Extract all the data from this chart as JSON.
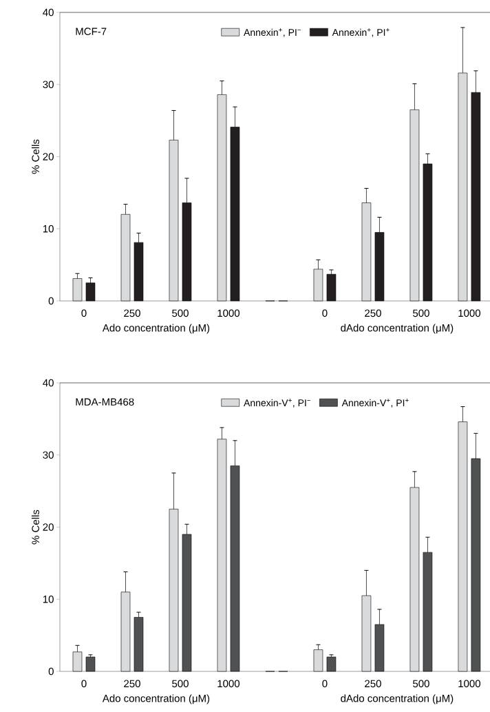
{
  "chart_data": [
    {
      "type": "bar",
      "title": "MCF-7",
      "ylabel": "% Cells",
      "xlabel": "Ado concentration (μM)",
      "annotations": [
        "dAdo concentration (μM)"
      ],
      "categories": [
        "0",
        "250",
        "500",
        "1000",
        null,
        "0",
        "250",
        "500",
        "1000"
      ],
      "series": [
        {
          "name": "Annexin$^{+}$, PI$^{−}$",
          "color": "#d9dadc",
          "values": [
            3.1,
            12.0,
            22.3,
            28.6,
            0,
            4.4,
            13.6,
            26.5,
            31.6
          ],
          "errors": [
            [
              3.1,
              3.8
            ],
            [
              12.0,
              13.4
            ],
            [
              22.3,
              26.4
            ],
            [
              28.6,
              30.5
            ],
            null,
            [
              4.4,
              5.7
            ],
            [
              13.6,
              15.6
            ],
            [
              26.5,
              30.1
            ],
            [
              31.6,
              37.9
            ]
          ]
        },
        {
          "name": "Annexin$^{+}$, PI$^{+}$",
          "color": "#231f20",
          "values": [
            2.5,
            8.1,
            13.6,
            24.1,
            0,
            3.7,
            9.5,
            19.0,
            28.9
          ],
          "errors": [
            [
              2.5,
              3.2
            ],
            [
              8.1,
              9.4
            ],
            [
              13.6,
              17.0
            ],
            [
              24.1,
              26.9
            ],
            null,
            [
              3.7,
              4.3
            ],
            [
              9.5,
              11.6
            ],
            [
              19.0,
              20.4
            ],
            [
              28.9,
              31.9
            ]
          ]
        }
      ],
      "ylim": [
        0,
        40
      ],
      "yticks": [
        0,
        10,
        20,
        30,
        40
      ],
      "legend": "top right"
    },
    {
      "type": "bar",
      "title": "MDA-MB468",
      "ylabel": "% Cells",
      "xlabel": "Ado concentration (μM)",
      "annotations": [
        "dAdo concentration (μM)"
      ],
      "categories": [
        "0",
        "250",
        "500",
        "1000",
        null,
        "0",
        "250",
        "500",
        "1000"
      ],
      "series": [
        {
          "name": "Annexin-V$^{+}$, PI$^{−}$",
          "color": "#d9dadc",
          "values": [
            2.7,
            11.0,
            22.5,
            32.2,
            0,
            3.0,
            10.5,
            25.5,
            34.6
          ],
          "errors": [
            [
              2.7,
              3.6
            ],
            [
              11.0,
              13.8
            ],
            [
              22.5,
              27.5
            ],
            [
              32.2,
              33.8
            ],
            null,
            [
              3.0,
              3.7
            ],
            [
              10.5,
              14.0
            ],
            [
              25.5,
              27.7
            ],
            [
              34.6,
              36.7
            ]
          ]
        },
        {
          "name": "Annexin-V$^{+}$, PI$^{+}$",
          "color": "#505153",
          "values": [
            2.0,
            7.5,
            19.0,
            28.5,
            0,
            2.0,
            6.5,
            16.5,
            29.5
          ],
          "errors": [
            [
              2.0,
              2.3
            ],
            [
              7.5,
              8.2
            ],
            [
              19.0,
              20.4
            ],
            [
              28.5,
              32.0
            ],
            null,
            [
              2.0,
              2.3
            ],
            [
              6.5,
              8.6
            ],
            [
              16.5,
              18.6
            ],
            [
              29.5,
              33.0
            ]
          ]
        }
      ],
      "ylim": [
        0,
        40
      ],
      "yticks": [
        0,
        10,
        20,
        30,
        40
      ],
      "legend": "top right"
    }
  ]
}
